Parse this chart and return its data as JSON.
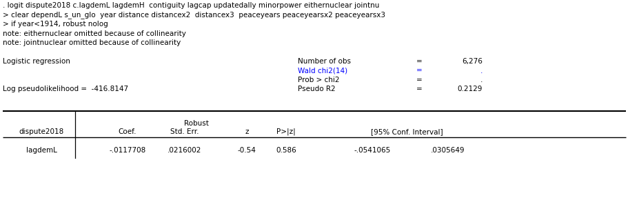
{
  "line1": ". logit dispute2018 c.lagdemL lagdemH  contiguity lagcap updatedally minorpower eithernuclear jointnu",
  "line2": "> clear dependL s_un_glo  year distance distancex2  distancex3  peaceyears peaceyearsx2 peaceyearsx3",
  "line3": "> if year<1914, robust nolog",
  "note1": "note: eithernuclear omitted because of collinearity",
  "note2": "note: jointnuclear omitted because of collinearity",
  "logistic_label": "Logistic regression",
  "nobs_label": "Number of obs",
  "nobs_eq": "=",
  "nobs_val": "6,276",
  "wald_label": "Wald chi2(14)",
  "wald_eq": "=",
  "wald_val": ".",
  "prob_label": "Prob > chi2",
  "prob_eq": "=",
  "prob_val": ".",
  "logpseudo_label": "Log pseudolikelihood =  -416.8147",
  "pseudo_label": "Pseudo R2",
  "pseudo_eq": "=",
  "pseudo_val": "0.2129",
  "col_header_robust": "Robust",
  "col_dep": "dispute2018",
  "col_coef": "Coef.",
  "col_stderr": "Std. Err.",
  "col_z": "z",
  "col_pz": "P>|z|",
  "col_ci": "[95% Conf. Interval]",
  "row1_var": "lagdemL",
  "row1_coef": "-.0117708",
  "row1_se": ".0216002",
  "row1_z": "-0.54",
  "row1_pz": "0.586",
  "row1_ci1": "-.0541065",
  "row1_ci2": ".0305649",
  "wald_color": "#0000FF",
  "black": "#000000",
  "bg_color": "#FFFFFF",
  "font_size": 7.5,
  "mono_font": "Courier New"
}
